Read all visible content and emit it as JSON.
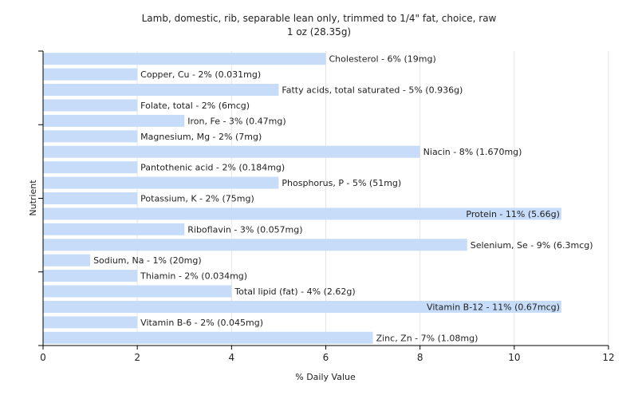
{
  "chart_data": {
    "type": "bar",
    "orientation": "horizontal",
    "title": "Lamb, domestic, rib, separable lean only, trimmed to 1/4\" fat, choice, raw",
    "subtitle": "1 oz (28.35g)",
    "xlabel": "% Daily Value",
    "ylabel": "Nutrient",
    "xlim": [
      0,
      12
    ],
    "xticks": [
      "0",
      "2",
      "4",
      "6",
      "8",
      "10",
      "12"
    ],
    "grid": true,
    "bar_color": "#c6dcf8",
    "categories": [
      "Cholesterol",
      "Copper, Cu",
      "Fatty acids, total saturated",
      "Folate, total",
      "Iron, Fe",
      "Magnesium, Mg",
      "Niacin",
      "Pantothenic acid",
      "Phosphorus, P",
      "Potassium, K",
      "Protein",
      "Riboflavin",
      "Selenium, Se",
      "Sodium, Na",
      "Thiamin",
      "Total lipid (fat)",
      "Vitamin B-12",
      "Vitamin B-6",
      "Zinc, Zn"
    ],
    "values": [
      6,
      2,
      5,
      2,
      3,
      2,
      8,
      2,
      5,
      2,
      11,
      3,
      9,
      1,
      2,
      4,
      11,
      2,
      7
    ],
    "labels": [
      "Cholesterol - 6% (19mg)",
      "Copper, Cu - 2% (0.031mg)",
      "Fatty acids, total saturated - 5% (0.936g)",
      "Folate, total - 2% (6mcg)",
      "Iron, Fe - 3% (0.47mg)",
      "Magnesium, Mg - 2% (7mg)",
      "Niacin - 8% (1.670mg)",
      "Pantothenic acid - 2% (0.184mg)",
      "Phosphorus, P - 5% (51mg)",
      "Potassium, K - 2% (75mg)",
      "Protein - 11% (5.66g)",
      "Riboflavin - 3% (0.057mg)",
      "Selenium, Se - 9% (6.3mcg)",
      "Sodium, Na - 1% (20mg)",
      "Thiamin - 2% (0.034mg)",
      "Total lipid (fat) - 4% (2.62g)",
      "Vitamin B-12 - 11% (0.67mcg)",
      "Vitamin B-6 - 2% (0.045mg)",
      "Zinc, Zn - 7% (1.08mg)"
    ]
  }
}
